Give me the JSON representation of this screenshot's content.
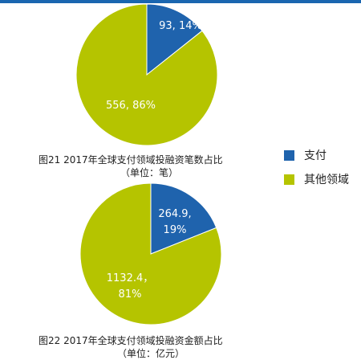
{
  "colors": {
    "payment": "#1f63ad",
    "other": "#b5c400",
    "band": "#1a66b0"
  },
  "chart_data": [
    {
      "type": "pie",
      "slices": [
        {
          "name": "支付",
          "value": 93,
          "label_line1": "93, 14%",
          "label_line2": ""
        },
        {
          "name": "其他领域",
          "value": 556,
          "label_line1": "556, 86%",
          "label_line2": ""
        }
      ],
      "caption_line1": "图21   2017年全球支付领域投融资笔数占比",
      "caption_line2": "（单位：笔）"
    },
    {
      "type": "pie",
      "slices": [
        {
          "name": "支付",
          "value": 264.9,
          "label_line1": "264.9,",
          "label_line2": "19%"
        },
        {
          "name": "其他领域",
          "value": 1132.4,
          "label_line1": "1132.4，",
          "label_line2": "81%"
        }
      ],
      "caption_line1": "图22   2017年全球支付领域投融资金额占比",
      "caption_line2": "（单位：亿元）"
    }
  ],
  "legend": [
    {
      "label": "支付",
      "color": "#1f63ad"
    },
    {
      "label": "其他领域",
      "color": "#b5c400"
    }
  ]
}
